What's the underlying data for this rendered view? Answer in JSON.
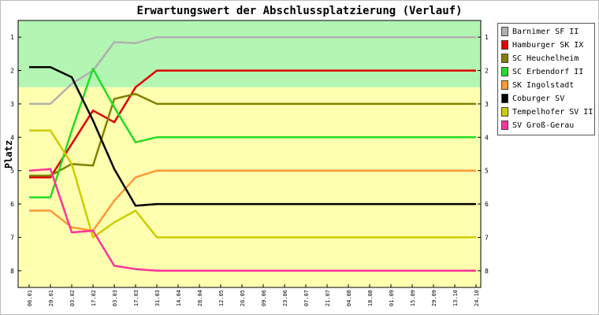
{
  "chart_data": {
    "type": "line",
    "title": "Erwartungswert der Abschlussplatzierung (Verlauf)",
    "ylabel": "Platz",
    "xlabel": "",
    "ylim": [
      0.5,
      8.5
    ],
    "y_inverted": true,
    "y_ticks": [
      1,
      2,
      3,
      4,
      5,
      6,
      7,
      8
    ],
    "grid": false,
    "legend_position": "right",
    "zones": [
      {
        "from": 0.5,
        "to": 2.5,
        "color": "#b3f5b3"
      },
      {
        "from": 2.5,
        "to": 8.5,
        "color": "#ffffb0"
      }
    ],
    "categories": [
      "06.01",
      "20.01",
      "03.02",
      "17.02",
      "03.03",
      "17.03",
      "31.03",
      "14.04",
      "28.04",
      "12.05",
      "26.05",
      "09.06",
      "23.06",
      "07.07",
      "21.07",
      "04.08",
      "18.08",
      "01.09",
      "15.09",
      "29.09",
      "13.10",
      "24.10"
    ],
    "series": [
      {
        "name": "Barnimer SF II",
        "color": "#b0b0b0",
        "values": [
          3.0,
          3.0,
          2.4,
          2.0,
          1.15,
          1.18,
          1.0,
          1.0,
          1.0,
          1.0,
          1.0,
          1.0,
          1.0,
          1.0,
          1.0,
          1.0,
          1.0,
          1.0,
          1.0,
          1.0,
          1.0,
          1.0
        ]
      },
      {
        "name": "Hamburger SK IX",
        "color": "#e00000",
        "values": [
          5.2,
          5.2,
          4.2,
          3.2,
          3.55,
          2.5,
          2.0,
          2.0,
          2.0,
          2.0,
          2.0,
          2.0,
          2.0,
          2.0,
          2.0,
          2.0,
          2.0,
          2.0,
          2.0,
          2.0,
          2.0,
          2.0
        ]
      },
      {
        "name": "SC Heuchelheim",
        "color": "#808000",
        "values": [
          5.15,
          5.15,
          4.8,
          4.85,
          2.85,
          2.7,
          3.0,
          3.0,
          3.0,
          3.0,
          3.0,
          3.0,
          3.0,
          3.0,
          3.0,
          3.0,
          3.0,
          3.0,
          3.0,
          3.0,
          3.0,
          3.0
        ]
      },
      {
        "name": "SC Erbendorf II",
        "color": "#22dd22",
        "values": [
          5.8,
          5.8,
          3.8,
          1.95,
          3.1,
          4.15,
          4.0,
          4.0,
          4.0,
          4.0,
          4.0,
          4.0,
          4.0,
          4.0,
          4.0,
          4.0,
          4.0,
          4.0,
          4.0,
          4.0,
          4.0,
          4.0
        ]
      },
      {
        "name": "SK Ingolstadt",
        "color": "#ff9933",
        "values": [
          6.2,
          6.2,
          6.7,
          6.8,
          5.9,
          5.2,
          5.0,
          5.0,
          5.0,
          5.0,
          5.0,
          5.0,
          5.0,
          5.0,
          5.0,
          5.0,
          5.0,
          5.0,
          5.0,
          5.0,
          5.0,
          5.0
        ]
      },
      {
        "name": "Coburger SV",
        "color": "#000000",
        "values": [
          1.9,
          1.9,
          2.2,
          3.5,
          4.95,
          6.05,
          6.0,
          6.0,
          6.0,
          6.0,
          6.0,
          6.0,
          6.0,
          6.0,
          6.0,
          6.0,
          6.0,
          6.0,
          6.0,
          6.0,
          6.0,
          6.0
        ]
      },
      {
        "name": "Tempelhofer SV II",
        "color": "#cccc00",
        "values": [
          3.8,
          3.8,
          4.8,
          7.0,
          6.55,
          6.2,
          7.0,
          7.0,
          7.0,
          7.0,
          7.0,
          7.0,
          7.0,
          7.0,
          7.0,
          7.0,
          7.0,
          7.0,
          7.0,
          7.0,
          7.0,
          7.0
        ]
      },
      {
        "name": "SV Groß-Gerau",
        "color": "#ff3399",
        "values": [
          5.0,
          4.95,
          6.85,
          6.8,
          7.85,
          7.95,
          8.0,
          8.0,
          8.0,
          8.0,
          8.0,
          8.0,
          8.0,
          8.0,
          8.0,
          8.0,
          8.0,
          8.0,
          8.0,
          8.0,
          8.0,
          8.0
        ]
      }
    ]
  }
}
